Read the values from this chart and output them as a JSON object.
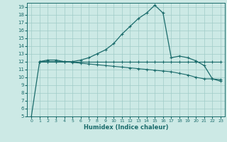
{
  "xlabel": "Humidex (Indice chaleur)",
  "bg_color": "#cce9e5",
  "grid_color": "#a0ccc8",
  "line_color": "#1a6b6b",
  "xlim": [
    -0.5,
    23.5
  ],
  "ylim": [
    5,
    19.5
  ],
  "yticks": [
    5,
    6,
    7,
    8,
    9,
    10,
    11,
    12,
    13,
    14,
    15,
    16,
    17,
    18,
    19
  ],
  "xticks": [
    0,
    1,
    2,
    3,
    4,
    5,
    6,
    7,
    8,
    9,
    10,
    11,
    12,
    13,
    14,
    15,
    16,
    17,
    18,
    19,
    20,
    21,
    22,
    23
  ],
  "line1_x": [
    0,
    1,
    2,
    3,
    4,
    5,
    6,
    7,
    8,
    9,
    10,
    11,
    12,
    13,
    14,
    15,
    16,
    17,
    18,
    19,
    20,
    21,
    22,
    23
  ],
  "line1_y": [
    5,
    12,
    12.2,
    12.2,
    12.0,
    12.0,
    12.2,
    12.5,
    13.0,
    13.5,
    14.3,
    15.5,
    16.5,
    17.5,
    18.2,
    19.2,
    18.2,
    12.5,
    12.7,
    12.5,
    12.1,
    11.5,
    9.8,
    9.5
  ],
  "line2_x": [
    1,
    2,
    3,
    4,
    5,
    6,
    7,
    8,
    9,
    10,
    11,
    12,
    13,
    14,
    15,
    16,
    17,
    18,
    19,
    20,
    21,
    22,
    23
  ],
  "line2_y": [
    12,
    12,
    12,
    12,
    12,
    12,
    12,
    12,
    12,
    12,
    12,
    12,
    12,
    12,
    12,
    12,
    12,
    12,
    12,
    12,
    12,
    12,
    12
  ],
  "line3_x": [
    1,
    2,
    3,
    4,
    5,
    6,
    7,
    8,
    9,
    10,
    11,
    12,
    13,
    14,
    15,
    16,
    17,
    18,
    19,
    20,
    21,
    22,
    23
  ],
  "line3_y": [
    12,
    12,
    12,
    12,
    11.9,
    11.8,
    11.7,
    11.6,
    11.5,
    11.4,
    11.3,
    11.2,
    11.1,
    11.0,
    10.9,
    10.8,
    10.7,
    10.5,
    10.3,
    10.0,
    9.8,
    9.8,
    9.7
  ]
}
